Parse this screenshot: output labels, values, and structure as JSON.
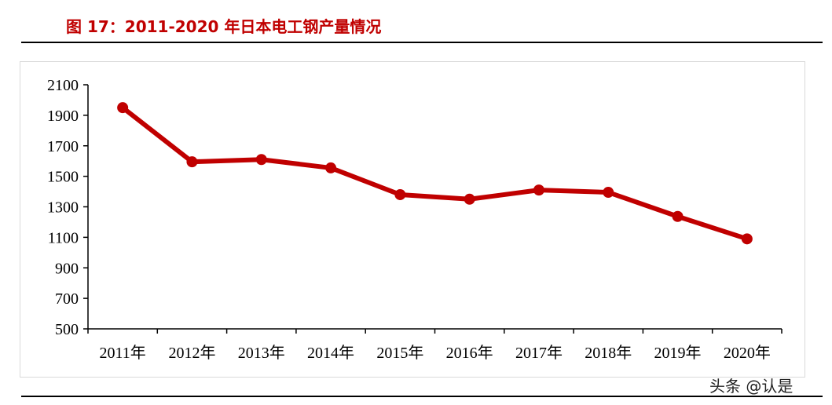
{
  "title": "图 17：2011-2020 年日本电工钢产量情况",
  "watermark": "头条 @认是",
  "colors": {
    "title": "#c00000",
    "series": "#c00000",
    "axis": "#000000"
  },
  "chart_data": {
    "type": "line",
    "title": "",
    "xlabel": "",
    "ylabel": "",
    "categories": [
      "2011年",
      "2012年",
      "2013年",
      "2014年",
      "2015年",
      "2016年",
      "2017年",
      "2018年",
      "2019年",
      "2020年"
    ],
    "series": [
      {
        "values": [
          1950,
          1595,
          1610,
          1555,
          1380,
          1350,
          1410,
          1395,
          1237,
          1090
        ]
      }
    ],
    "y_ticks": [
      500,
      700,
      900,
      1100,
      1300,
      1500,
      1700,
      1900,
      2100
    ],
    "ylim": [
      500,
      2100
    ],
    "grid": false,
    "legend": "none",
    "markers": true
  }
}
